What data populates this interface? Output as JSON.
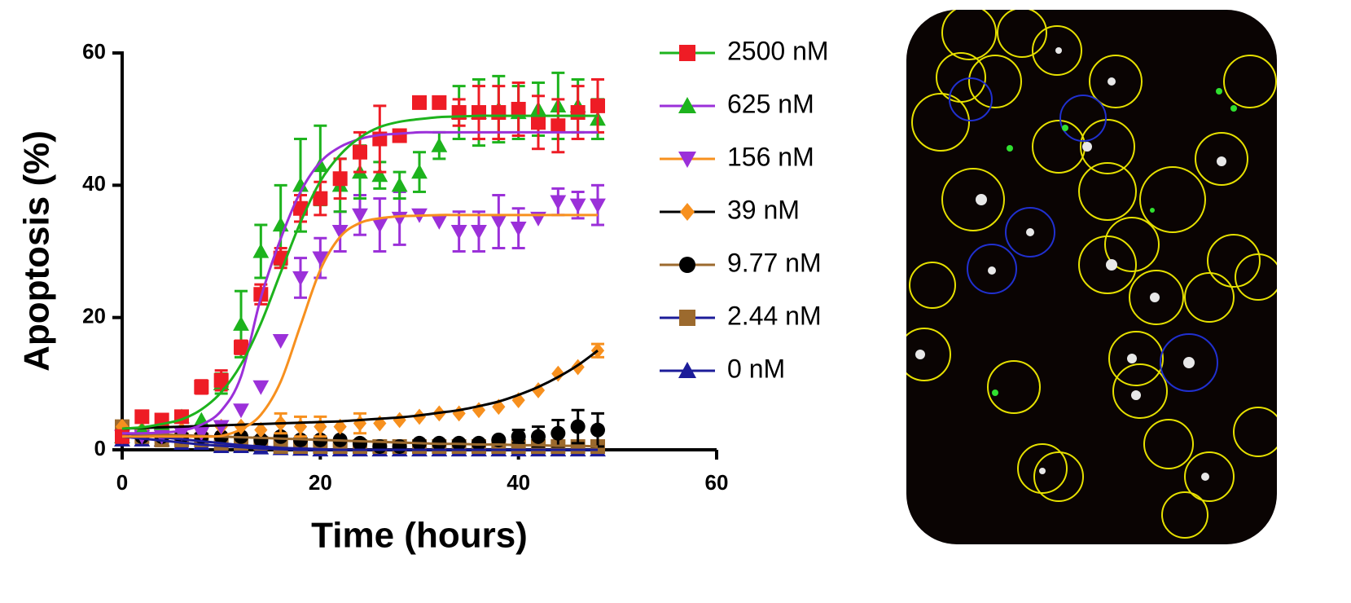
{
  "chart_data": {
    "type": "line",
    "xlabel": "Time (hours)",
    "ylabel": "Apoptosis (%)",
    "xlim": [
      0,
      60
    ],
    "xticks": [
      0,
      20,
      40,
      60
    ],
    "ylim": [
      0,
      60
    ],
    "yticks": [
      0,
      20,
      40,
      60
    ],
    "x": [
      0,
      2,
      4,
      6,
      8,
      10,
      12,
      14,
      16,
      18,
      20,
      22,
      24,
      26,
      28,
      30,
      32,
      34,
      36,
      38,
      40,
      42,
      44,
      46,
      48
    ],
    "series": [
      {
        "name": "2500 nM",
        "color": "#ee1c25",
        "line_color": "#1db31d",
        "marker": "square",
        "values": [
          2,
          5,
          4.5,
          5,
          9.5,
          10.5,
          15.5,
          23.5,
          29,
          36.5,
          38,
          41,
          45,
          47,
          47.5,
          52.5,
          52.5,
          51,
          51,
          51,
          51.5,
          49.5,
          49,
          51,
          52
        ],
        "errors": [
          0,
          0,
          0,
          0,
          1,
          1.5,
          1,
          1.5,
          1.5,
          2,
          2.5,
          3,
          3,
          5,
          0,
          0,
          0,
          2,
          4,
          4,
          4,
          4,
          4,
          4,
          4
        ],
        "fit": [
          3.2,
          3.4,
          3.9,
          4.6,
          6.1,
          8.7,
          12.9,
          19.1,
          26.8,
          34.4,
          40.6,
          44.6,
          47.2,
          48.8,
          49.6,
          50,
          50.3,
          50.4,
          50.5,
          50.5,
          50.5,
          50.5,
          50.5,
          50.5,
          50.5
        ]
      },
      {
        "name": "625 nM",
        "color": "#1db31d",
        "line_color": "#9b30d9",
        "marker": "triangle-up",
        "values": [
          2,
          3,
          4,
          5,
          4.5,
          10,
          19,
          30,
          34,
          40,
          43,
          40,
          42,
          41.5,
          40,
          42,
          46,
          51,
          51,
          51.5,
          51,
          51.5,
          52,
          52,
          50
        ],
        "errors": [
          0,
          0,
          0,
          0,
          0,
          1.5,
          5,
          4,
          6,
          7,
          6,
          4,
          4,
          2,
          2,
          3,
          2,
          4,
          5,
          5,
          4,
          4,
          5,
          4,
          3
        ],
        "fit": [
          2.5,
          2.5,
          2.6,
          2.9,
          3.8,
          5.9,
          11.1,
          23,
          31.9,
          39,
          43.5,
          45.8,
          47,
          47.6,
          47.8,
          48,
          48,
          48,
          48,
          48,
          48,
          48,
          48,
          48,
          48
        ]
      },
      {
        "name": "156 nM",
        "color": "#9b30d9",
        "line_color": "#f7901e",
        "marker": "triangle-down",
        "values": [
          2,
          2,
          2,
          2.5,
          2.5,
          3.5,
          6,
          9.5,
          16.5,
          26,
          29,
          33,
          35.5,
          34,
          35,
          35.5,
          34.5,
          33,
          33,
          34.5,
          33.5,
          35,
          37.5,
          37,
          37
        ],
        "errors": [
          0,
          0,
          0,
          0,
          0,
          0,
          0,
          0,
          0,
          3,
          3,
          3,
          3,
          4,
          4,
          0,
          0,
          3,
          3,
          4,
          3,
          0,
          2,
          2,
          3
        ],
        "fit": [
          2,
          2,
          2,
          2,
          2,
          2.1,
          3.1,
          5.3,
          10.3,
          18.8,
          27.2,
          32.2,
          34.3,
          35,
          35.3,
          35.4,
          35.5,
          35.5,
          35.5,
          35.5,
          35.5,
          35.5,
          35.5,
          35.5,
          35.5
        ]
      },
      {
        "name": "39 nM",
        "color": "#f7901e",
        "line_color": "#000000",
        "marker": "diamond",
        "values": [
          3.5,
          3,
          3,
          3,
          3,
          3.5,
          3.5,
          3,
          4,
          3.5,
          3.5,
          3.5,
          4,
          4,
          4.5,
          5,
          5.5,
          5.5,
          6,
          6.5,
          7.5,
          9,
          11.5,
          12.5,
          15
        ],
        "errors": [
          0,
          0,
          0,
          0,
          0,
          0,
          0,
          0,
          1.5,
          1.5,
          1.5,
          0,
          1.5,
          0,
          0,
          0,
          0,
          0,
          0,
          0,
          0,
          0,
          0,
          0,
          1
        ],
        "fit": [
          3.2,
          3.3,
          3.4,
          3.5,
          3.6,
          3.7,
          3.8,
          3.9,
          4,
          4.1,
          4.2,
          4.3,
          4.5,
          4.7,
          4.9,
          5.2,
          5.6,
          6,
          6.6,
          7.3,
          8.3,
          9.5,
          11,
          12.8,
          15
        ]
      },
      {
        "name": "9.77 nM",
        "color": "#000000",
        "line_color": "#9c6a2e",
        "marker": "circle",
        "values": [
          2,
          2,
          2,
          2,
          2,
          2,
          2,
          1.5,
          2,
          1.5,
          1.5,
          1.5,
          1,
          0.5,
          0.5,
          1,
          1,
          1,
          1,
          1.5,
          2,
          2,
          2.5,
          3.5,
          3
        ],
        "errors": [
          0,
          0,
          0,
          0,
          0,
          0,
          0,
          0,
          0,
          0,
          0,
          0,
          0,
          0,
          0,
          0,
          0,
          0,
          0,
          0,
          1,
          1.5,
          2,
          2.5,
          2.5
        ],
        "fit": [
          2.5,
          2.4,
          2.3,
          2.2,
          2.1,
          2,
          1.9,
          1.8,
          1.7,
          1.6,
          1.5,
          1.4,
          1.3,
          1.2,
          1.1,
          1,
          0.9,
          0.9,
          0.8,
          0.8,
          0.7,
          0.7,
          0.6,
          0.6,
          0.5
        ]
      },
      {
        "name": "2.44 nM",
        "color": "#9c6a2e",
        "line_color": "#1c1c99",
        "marker": "square",
        "values": [
          3.5,
          2,
          1.5,
          1.5,
          1.5,
          1,
          1,
          1,
          0.5,
          0.5,
          0.5,
          0.5,
          0.5,
          0.5,
          0.5,
          0.5,
          0.5,
          0.5,
          0.5,
          0.5,
          0.5,
          0.5,
          0.5,
          0.5,
          0.5
        ],
        "errors": [
          0,
          0,
          0,
          0,
          0,
          0,
          0,
          0,
          0,
          0,
          0,
          0,
          0,
          0,
          0,
          0,
          0,
          0,
          0,
          0,
          0,
          0,
          0,
          0,
          0
        ],
        "fit": [
          2.5,
          2.2,
          1.9,
          1.6,
          1.3,
          1,
          0.7,
          0.5,
          0.3,
          0.2,
          0.1,
          0,
          0,
          0,
          0,
          0,
          0,
          0,
          0,
          0,
          0,
          0,
          0,
          0,
          0
        ]
      },
      {
        "name": "0 nM",
        "color": "#1c1c99",
        "line_color": "#1c1c99",
        "marker": "triangle-up",
        "values": [
          1.5,
          1.5,
          1.5,
          1,
          1,
          0.5,
          0.5,
          0.3,
          0.2,
          0.1,
          0,
          0,
          0,
          0,
          0,
          0,
          0,
          0,
          0,
          0,
          0,
          0,
          0,
          0,
          0
        ],
        "errors": [
          0,
          0,
          0,
          0,
          0,
          0,
          0,
          0,
          0,
          0,
          0,
          0,
          0,
          0,
          0,
          0,
          0,
          0,
          0,
          0,
          0,
          0,
          0,
          0,
          0
        ],
        "fit": [
          2,
          1.7,
          1.4,
          1.1,
          0.8,
          0.6,
          0.4,
          0.2,
          0.1,
          0,
          0,
          0,
          0,
          0,
          0,
          0,
          0,
          0,
          0,
          0,
          0,
          0,
          0,
          0,
          0
        ]
      }
    ]
  }
}
